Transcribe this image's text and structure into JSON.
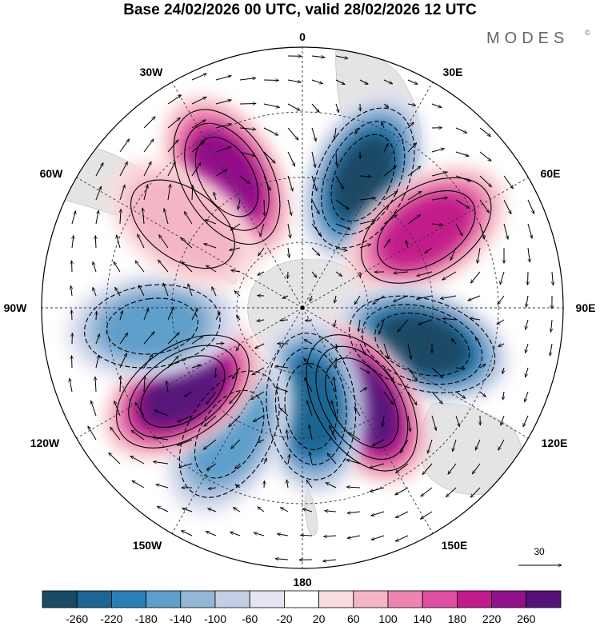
{
  "title": "Base 24/02/2026 00 UTC, valid 28/02/2026 12 UTC",
  "brand": "MODES",
  "brand_mark": "©",
  "longitude_labels": {
    "top": "0",
    "top_left": "30W",
    "top_right": "30E",
    "upper_left": "60W",
    "upper_right": "60E",
    "left": "90W",
    "right": "90E",
    "lower_left": "120W",
    "lower_right": "120E",
    "bottom_left": "150W",
    "bottom_right": "150E",
    "bottom": "180"
  },
  "reference_vector": {
    "label": "30"
  },
  "colorbar": {
    "labels": [
      "-260",
      "-220",
      "-180",
      "-140",
      "-100",
      "-60",
      "-20",
      "20",
      "60",
      "100",
      "140",
      "180",
      "220",
      "260"
    ],
    "colors": [
      "#1a4a66",
      "#1e6591",
      "#2b7fb8",
      "#5f9fcb",
      "#94b6d7",
      "#c4cfe6",
      "#e4e4f2",
      "#ffffff",
      "#fbdcdc",
      "#f4b6c5",
      "#ec85b1",
      "#df4ea2",
      "#c21a8b",
      "#91118a",
      "#57127a"
    ]
  },
  "anomaly_centers": [
    {
      "name": "neg-0E",
      "lon": 25,
      "colat": 0.55,
      "value": -260
    },
    {
      "name": "pos-30W",
      "lon": -30,
      "colat": 0.58,
      "value": 240
    },
    {
      "name": "pos-60E",
      "lon": 58,
      "colat": 0.56,
      "value": 200
    },
    {
      "name": "neg-105E",
      "lon": 107,
      "colat": 0.48,
      "value": -280
    },
    {
      "name": "pos-150E",
      "lon": 148,
      "colat": 0.43,
      "value": 290
    },
    {
      "name": "neg-175E",
      "lon": 175,
      "colat": 0.38,
      "value": -240
    },
    {
      "name": "neg-150W",
      "lon": -150,
      "colat": 0.56,
      "value": -160
    },
    {
      "name": "pos-125W",
      "lon": -125,
      "colat": 0.56,
      "value": 270
    },
    {
      "name": "neg-95W",
      "lon": -97,
      "colat": 0.58,
      "value": -150
    },
    {
      "name": "pos-60W",
      "lon": -55,
      "colat": 0.56,
      "value": 80
    }
  ]
}
